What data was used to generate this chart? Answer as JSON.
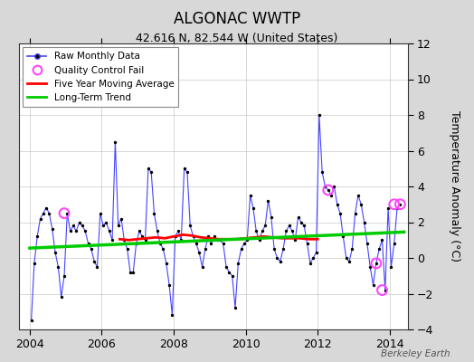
{
  "title": "ALGONAC WWTP",
  "subtitle": "42.616 N, 82.544 W (United States)",
  "ylabel": "Temperature Anomaly (°C)",
  "watermark": "Berkeley Earth",
  "xlim": [
    2003.7,
    2014.5
  ],
  "ylim": [
    -4,
    12
  ],
  "yticks": [
    -4,
    -2,
    0,
    2,
    4,
    6,
    8,
    10,
    12
  ],
  "xticks": [
    2004,
    2006,
    2008,
    2010,
    2012,
    2014
  ],
  "fig_bg_color": "#d8d8d8",
  "plot_bg_color": "#ffffff",
  "raw_color": "#4444ff",
  "dot_color": "#000000",
  "moving_avg_color": "#ff0000",
  "trend_color": "#00cc00",
  "qc_fail_color": "#ff44ff",
  "grid_color": "#bbbbbb",
  "raw_x": [
    2004.042,
    2004.125,
    2004.208,
    2004.292,
    2004.375,
    2004.458,
    2004.542,
    2004.625,
    2004.708,
    2004.792,
    2004.875,
    2004.958,
    2005.042,
    2005.125,
    2005.208,
    2005.292,
    2005.375,
    2005.458,
    2005.542,
    2005.625,
    2005.708,
    2005.792,
    2005.875,
    2005.958,
    2006.042,
    2006.125,
    2006.208,
    2006.292,
    2006.375,
    2006.458,
    2006.542,
    2006.625,
    2006.708,
    2006.792,
    2006.875,
    2006.958,
    2007.042,
    2007.125,
    2007.208,
    2007.292,
    2007.375,
    2007.458,
    2007.542,
    2007.625,
    2007.708,
    2007.792,
    2007.875,
    2007.958,
    2008.042,
    2008.125,
    2008.208,
    2008.292,
    2008.375,
    2008.458,
    2008.542,
    2008.625,
    2008.708,
    2008.792,
    2008.875,
    2008.958,
    2009.042,
    2009.125,
    2009.208,
    2009.292,
    2009.375,
    2009.458,
    2009.542,
    2009.625,
    2009.708,
    2009.792,
    2009.875,
    2009.958,
    2010.042,
    2010.125,
    2010.208,
    2010.292,
    2010.375,
    2010.458,
    2010.542,
    2010.625,
    2010.708,
    2010.792,
    2010.875,
    2010.958,
    2011.042,
    2011.125,
    2011.208,
    2011.292,
    2011.375,
    2011.458,
    2011.542,
    2011.625,
    2011.708,
    2011.792,
    2011.875,
    2011.958,
    2012.042,
    2012.125,
    2012.208,
    2012.292,
    2012.375,
    2012.458,
    2012.542,
    2012.625,
    2012.708,
    2012.792,
    2012.875,
    2012.958,
    2013.042,
    2013.125,
    2013.208,
    2013.292,
    2013.375,
    2013.458,
    2013.542,
    2013.625,
    2013.708,
    2013.792,
    2013.875,
    2013.958,
    2014.042,
    2014.125,
    2014.208,
    2014.292
  ],
  "raw_y": [
    -3.5,
    -0.3,
    1.2,
    2.2,
    2.5,
    2.8,
    2.5,
    1.6,
    0.3,
    -0.5,
    -2.2,
    -1.0,
    2.5,
    1.5,
    1.8,
    1.5,
    2.0,
    1.8,
    1.5,
    0.8,
    0.5,
    -0.2,
    -0.5,
    2.5,
    1.8,
    2.0,
    1.5,
    1.0,
    6.5,
    1.8,
    2.2,
    1.0,
    0.5,
    -0.8,
    -0.8,
    0.8,
    1.5,
    1.2,
    1.0,
    5.0,
    4.8,
    2.5,
    1.5,
    0.8,
    0.5,
    -0.3,
    -1.5,
    -3.2,
    1.2,
    1.5,
    1.0,
    5.0,
    4.8,
    1.8,
    1.2,
    0.8,
    0.3,
    -0.5,
    0.5,
    1.2,
    0.8,
    1.2,
    1.0,
    1.0,
    0.8,
    -0.5,
    -0.8,
    -1.0,
    -2.8,
    -0.3,
    0.5,
    0.8,
    1.0,
    3.5,
    2.8,
    1.5,
    1.0,
    1.5,
    1.8,
    3.2,
    2.3,
    0.5,
    0.0,
    -0.2,
    0.5,
    1.5,
    1.8,
    1.5,
    1.0,
    2.3,
    2.0,
    1.8,
    0.8,
    -0.3,
    0.0,
    0.3,
    8.0,
    4.8,
    4.0,
    3.8,
    3.5,
    4.0,
    3.0,
    2.5,
    1.2,
    0.0,
    -0.2,
    0.5,
    2.5,
    3.5,
    3.0,
    2.0,
    0.8,
    -0.5,
    -1.5,
    -0.3,
    0.5,
    1.0,
    -1.8,
    2.8,
    -0.5,
    0.8,
    2.8,
    3.0
  ],
  "qc_fail_x": [
    2004.958,
    2012.292,
    2013.625,
    2013.792,
    2014.125,
    2014.292
  ],
  "qc_fail_y": [
    2.5,
    3.8,
    -0.3,
    -1.8,
    3.0,
    3.0
  ],
  "moving_avg_x": [
    2006.5,
    2006.75,
    2007.0,
    2007.25,
    2007.5,
    2007.75,
    2008.0,
    2008.25,
    2008.5,
    2008.75,
    2009.0,
    2009.25,
    2009.5,
    2009.75,
    2010.0,
    2010.25,
    2010.5,
    2010.75,
    2011.0,
    2011.25,
    2011.5,
    2011.75,
    2012.0
  ],
  "moving_avg_y": [
    1.05,
    1.0,
    1.05,
    1.1,
    1.15,
    1.1,
    1.2,
    1.3,
    1.25,
    1.15,
    1.1,
    1.05,
    1.05,
    1.05,
    1.1,
    1.15,
    1.2,
    1.15,
    1.1,
    1.1,
    1.1,
    1.05,
    1.05
  ],
  "trend_x": [
    2004.0,
    2014.4
  ],
  "trend_y": [
    0.55,
    1.45
  ]
}
